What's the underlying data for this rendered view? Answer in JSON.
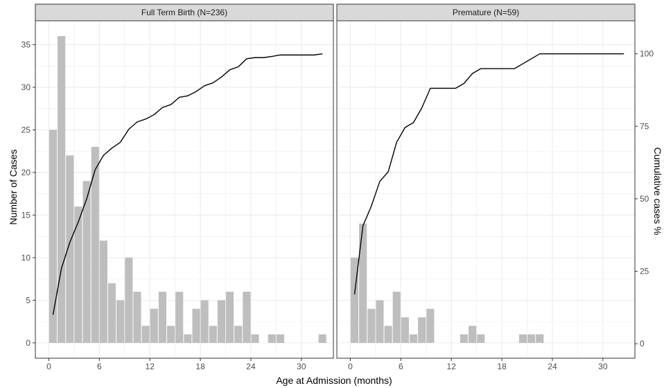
{
  "chart_data": {
    "type": "bar",
    "xlabel": "Age at Admission (months)",
    "ylabel": "Number of Cases",
    "y2label": "Cumulative cases %",
    "xlim": [
      -1.6,
      33.8
    ],
    "ylim": [
      -1.8,
      37.8
    ],
    "y2lim": [
      -5.0,
      111.4
    ],
    "x_ticks": [
      0,
      6,
      12,
      18,
      24,
      30
    ],
    "y_ticks": [
      0,
      5,
      10,
      15,
      20,
      25,
      30,
      35
    ],
    "y2_ticks": [
      0,
      25,
      50,
      75,
      100
    ],
    "grid": true,
    "bin_width": 1,
    "colors": {
      "bars": "#bebebe",
      "line": "#000000",
      "strip": "#d9d9d9",
      "grid": "#ebebeb"
    },
    "panels": [
      {
        "title": "Full Term Birth (N=236)",
        "bars": [
          {
            "x": 0.5,
            "count": 25
          },
          {
            "x": 1.5,
            "count": 36
          },
          {
            "x": 2.5,
            "count": 22
          },
          {
            "x": 3.5,
            "count": 16
          },
          {
            "x": 4.5,
            "count": 19
          },
          {
            "x": 5.5,
            "count": 23
          },
          {
            "x": 6.5,
            "count": 12
          },
          {
            "x": 7.5,
            "count": 7
          },
          {
            "x": 8.5,
            "count": 5
          },
          {
            "x": 9.5,
            "count": 10
          },
          {
            "x": 10.5,
            "count": 6
          },
          {
            "x": 11.5,
            "count": 2
          },
          {
            "x": 12.5,
            "count": 4
          },
          {
            "x": 13.5,
            "count": 6
          },
          {
            "x": 14.5,
            "count": 2
          },
          {
            "x": 15.5,
            "count": 6
          },
          {
            "x": 16.5,
            "count": 1
          },
          {
            "x": 17.5,
            "count": 4
          },
          {
            "x": 18.5,
            "count": 5
          },
          {
            "x": 19.5,
            "count": 2
          },
          {
            "x": 20.5,
            "count": 5
          },
          {
            "x": 21.5,
            "count": 6
          },
          {
            "x": 22.5,
            "count": 2
          },
          {
            "x": 23.5,
            "count": 6
          },
          {
            "x": 24.5,
            "count": 1
          },
          {
            "x": 26.5,
            "count": 1
          },
          {
            "x": 27.5,
            "count": 1
          },
          {
            "x": 32.5,
            "count": 1
          }
        ],
        "cumulative": [
          {
            "x": 0.5,
            "pct": 10
          },
          {
            "x": 1.5,
            "pct": 26
          },
          {
            "x": 2.5,
            "pct": 35
          },
          {
            "x": 3.5,
            "pct": 42
          },
          {
            "x": 4.5,
            "pct": 50
          },
          {
            "x": 5.5,
            "pct": 60
          },
          {
            "x": 6.5,
            "pct": 65
          },
          {
            "x": 7.5,
            "pct": 67.5
          },
          {
            "x": 8.5,
            "pct": 69.5
          },
          {
            "x": 9.5,
            "pct": 74
          },
          {
            "x": 10.5,
            "pct": 76.5
          },
          {
            "x": 11.5,
            "pct": 77.5
          },
          {
            "x": 12.5,
            "pct": 79
          },
          {
            "x": 13.5,
            "pct": 81.5
          },
          {
            "x": 14.5,
            "pct": 82.5
          },
          {
            "x": 15.5,
            "pct": 85
          },
          {
            "x": 16.5,
            "pct": 85.5
          },
          {
            "x": 17.5,
            "pct": 87
          },
          {
            "x": 18.5,
            "pct": 89
          },
          {
            "x": 19.5,
            "pct": 90
          },
          {
            "x": 20.5,
            "pct": 92
          },
          {
            "x": 21.5,
            "pct": 94.5
          },
          {
            "x": 22.5,
            "pct": 95.5
          },
          {
            "x": 23.5,
            "pct": 98.3
          },
          {
            "x": 24.5,
            "pct": 98.7
          },
          {
            "x": 25.5,
            "pct": 98.7
          },
          {
            "x": 26.5,
            "pct": 99.1
          },
          {
            "x": 27.5,
            "pct": 99.6
          },
          {
            "x": 28.5,
            "pct": 99.6
          },
          {
            "x": 29.5,
            "pct": 99.6
          },
          {
            "x": 30.5,
            "pct": 99.6
          },
          {
            "x": 31.5,
            "pct": 99.6
          },
          {
            "x": 32.5,
            "pct": 100
          }
        ]
      },
      {
        "title": "Premature (N=59)",
        "bars": [
          {
            "x": 0.5,
            "count": 10
          },
          {
            "x": 1.5,
            "count": 14
          },
          {
            "x": 2.5,
            "count": 4
          },
          {
            "x": 3.5,
            "count": 5
          },
          {
            "x": 4.5,
            "count": 2
          },
          {
            "x": 5.5,
            "count": 6
          },
          {
            "x": 6.5,
            "count": 3
          },
          {
            "x": 7.5,
            "count": 1
          },
          {
            "x": 8.5,
            "count": 3
          },
          {
            "x": 9.5,
            "count": 4
          },
          {
            "x": 13.5,
            "count": 1
          },
          {
            "x": 14.5,
            "count": 2
          },
          {
            "x": 15.5,
            "count": 1
          },
          {
            "x": 20.5,
            "count": 1
          },
          {
            "x": 21.5,
            "count": 1
          },
          {
            "x": 22.5,
            "count": 1
          }
        ],
        "cumulative": [
          {
            "x": 0.5,
            "pct": 17
          },
          {
            "x": 1.5,
            "pct": 40.7
          },
          {
            "x": 2.5,
            "pct": 47.5
          },
          {
            "x": 3.5,
            "pct": 56
          },
          {
            "x": 4.5,
            "pct": 59.3
          },
          {
            "x": 5.5,
            "pct": 69.5
          },
          {
            "x": 6.5,
            "pct": 74.6
          },
          {
            "x": 7.5,
            "pct": 76.3
          },
          {
            "x": 8.5,
            "pct": 81.4
          },
          {
            "x": 9.5,
            "pct": 88.1
          },
          {
            "x": 10.5,
            "pct": 88.1
          },
          {
            "x": 11.5,
            "pct": 88.1
          },
          {
            "x": 12.5,
            "pct": 88.1
          },
          {
            "x": 13.5,
            "pct": 89.8
          },
          {
            "x": 14.5,
            "pct": 93.2
          },
          {
            "x": 15.5,
            "pct": 94.9
          },
          {
            "x": 16.5,
            "pct": 94.9
          },
          {
            "x": 17.5,
            "pct": 94.9
          },
          {
            "x": 18.5,
            "pct": 94.9
          },
          {
            "x": 19.5,
            "pct": 94.9
          },
          {
            "x": 20.5,
            "pct": 96.6
          },
          {
            "x": 21.5,
            "pct": 98.3
          },
          {
            "x": 22.5,
            "pct": 100
          },
          {
            "x": 23.5,
            "pct": 100
          },
          {
            "x": 32.5,
            "pct": 100
          }
        ]
      }
    ]
  }
}
